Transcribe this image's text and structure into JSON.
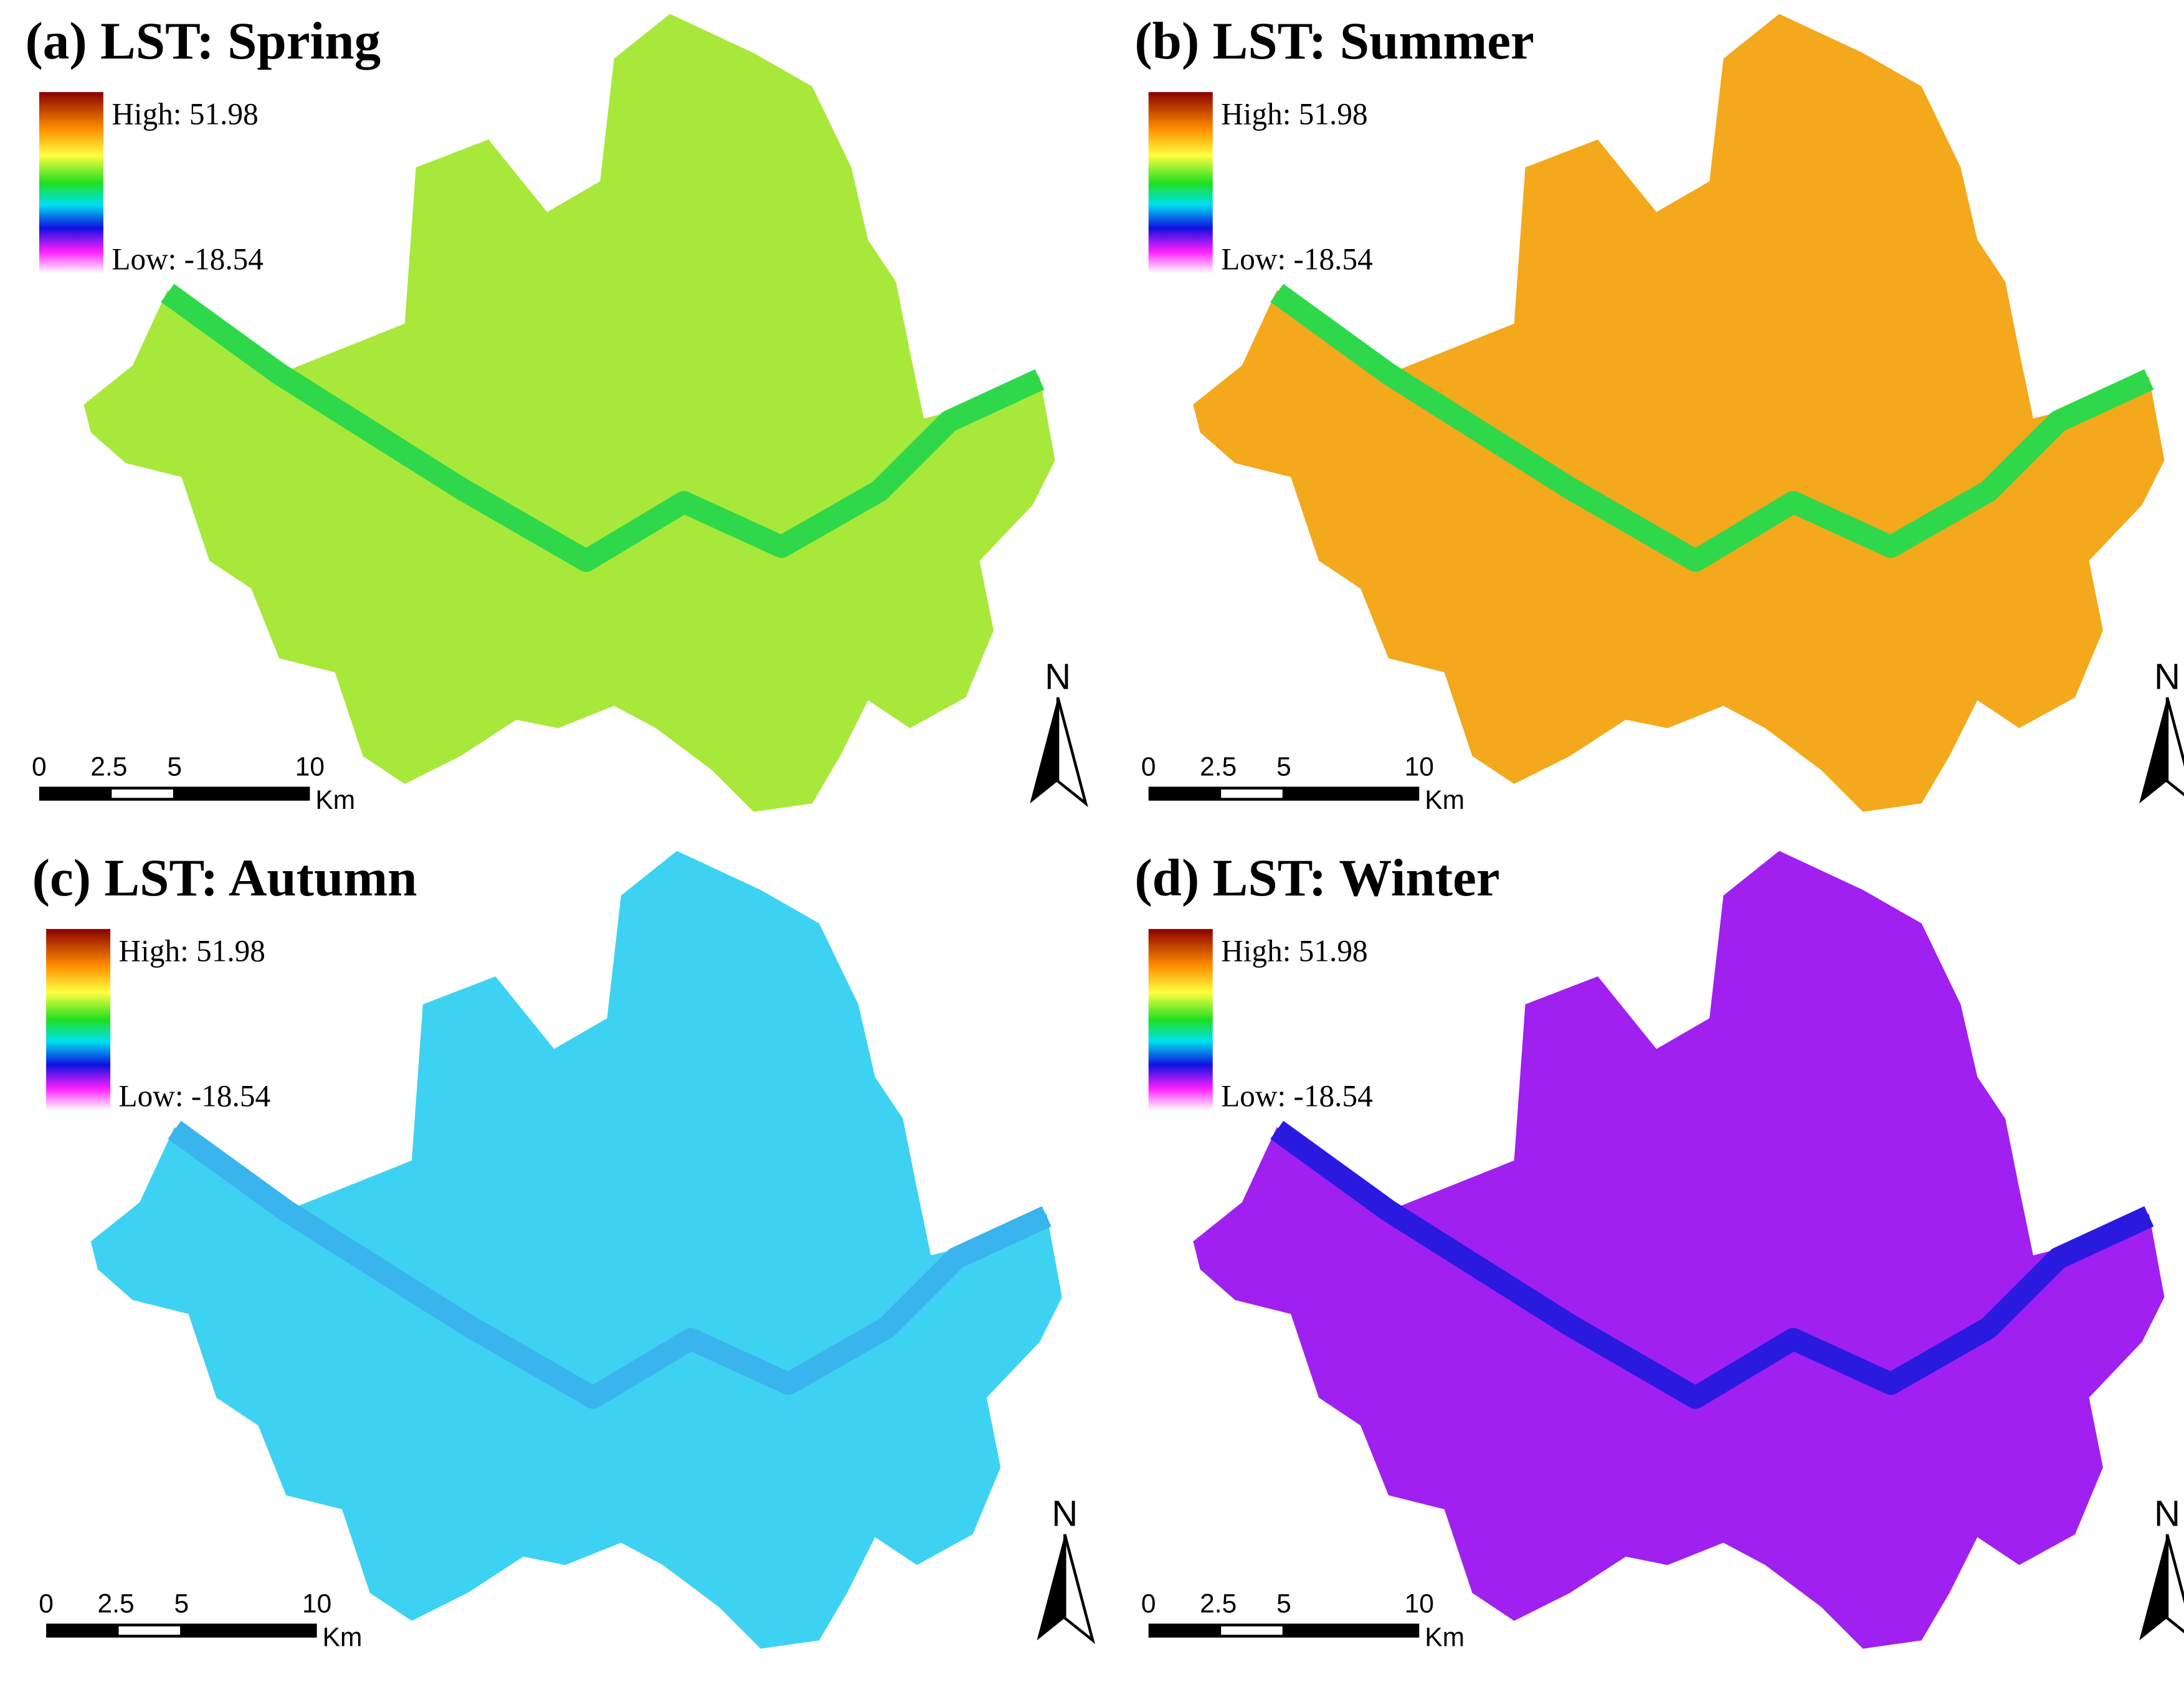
{
  "panels": [
    {
      "title": "(a) LST: Spring",
      "legend": {
        "high": "High: 51.98",
        "low": "Low: -18.54"
      },
      "scale": {
        "ticks": [
          "0",
          "2.5",
          "5",
          "10"
        ],
        "unit": "Km"
      },
      "north": "N",
      "map_color": "#a8e83a",
      "river_color": "#2fd84a"
    },
    {
      "title": "(b) LST: Summer",
      "legend": {
        "high": "High: 51.98",
        "low": "Low: -18.54"
      },
      "scale": {
        "ticks": [
          "0",
          "2.5",
          "5",
          "10"
        ],
        "unit": "Km"
      },
      "north": "N",
      "map_color": "#f4a81c",
      "river_color": "#2fd84a"
    },
    {
      "title": "(c) LST: Autumn",
      "legend": {
        "high": "High: 51.98",
        "low": "Low: -18.54"
      },
      "scale": {
        "ticks": [
          "0",
          "2.5",
          "5",
          "10"
        ],
        "unit": "Km"
      },
      "north": "N",
      "map_color": "#3ed2f2",
      "river_color": "#3ab4ec"
    },
    {
      "title": "(d) LST: Winter",
      "legend": {
        "high": "High: 51.98",
        "low": "Low: -18.54"
      },
      "scale": {
        "ticks": [
          "0",
          "2.5",
          "5",
          "10"
        ],
        "unit": "Km"
      },
      "north": "N",
      "map_color": "#a020f0",
      "river_color": "#2a1ae0"
    }
  ]
}
